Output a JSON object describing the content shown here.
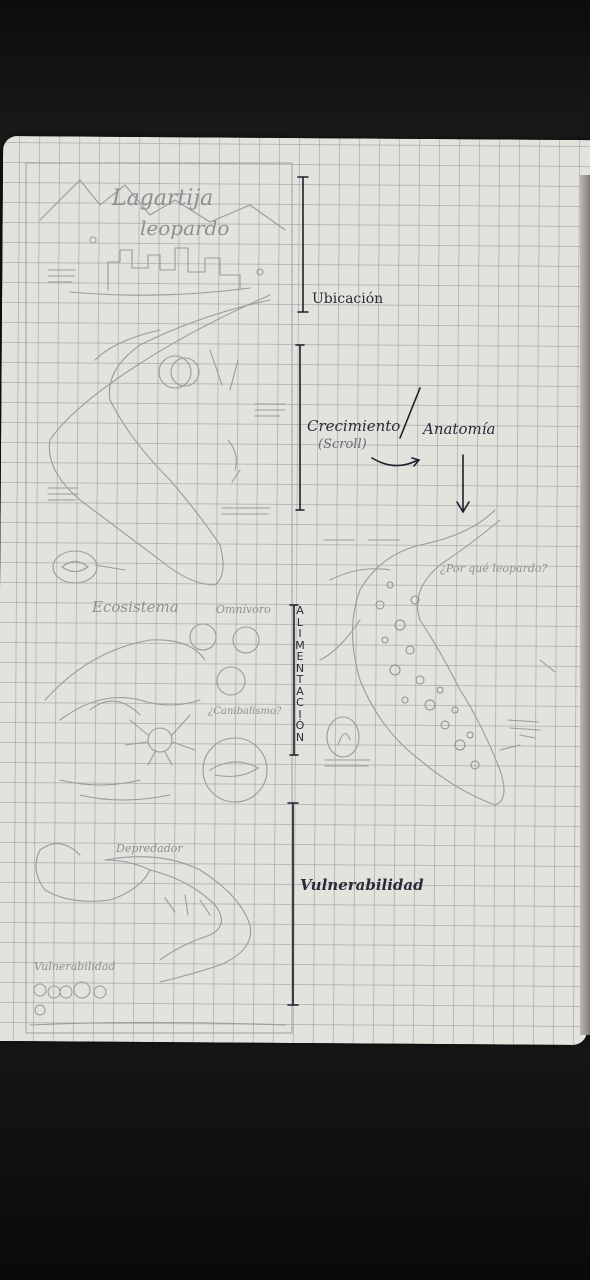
{
  "photo": {
    "subject": "hand-drawn storyboard sketch on grid notebook page",
    "paper_color": "#e4e2dd",
    "ink_color": "#2a2a3a",
    "pencil_color": "#8f8f93"
  },
  "pencil_labels": {
    "title_line1": "Lagartija",
    "title_line2": "leopardo",
    "ecosistema": "Ecosistema",
    "omnivoro": "Omnívoro",
    "canibalismo": "¿Canibalismo?",
    "depredador": "Depredador",
    "vulnerabilidad_small": "Vulnerabilidad",
    "por_que_leopardo": "¿Por qué leopardo?"
  },
  "ink_labels": {
    "ubicacion": "Ubicación",
    "crecimiento": "Crecimiento",
    "scroll": "(Scroll)",
    "anatomia": "Anatomía",
    "alimentacion_letters": [
      "A",
      "L",
      "I",
      "M",
      "E",
      "N",
      "T",
      "A",
      "C",
      "I",
      "Ó",
      "N"
    ],
    "vulnerabilidad": "Vulnerabilidad"
  },
  "icons": {
    "bracket": "vertical-bracket-line",
    "arrow": "down-arrow"
  }
}
